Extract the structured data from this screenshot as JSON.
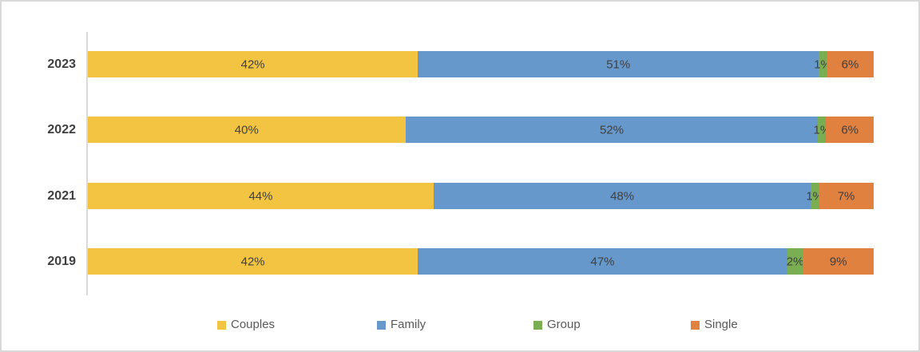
{
  "canvas": {
    "background": "#FFFFFF",
    "border_color": "#D9D9D9"
  },
  "chart_data": {
    "type": "bar",
    "variant": "stacked-horizontal-percent",
    "title": "",
    "xlabel": "",
    "ylabel": "",
    "grid": false,
    "axis_color": "#D9D9D9",
    "category_label_color": "#404040",
    "data_label_color": "#404040",
    "value_suffix": "%",
    "categories": [
      "2023",
      "2022",
      "2021",
      "2019"
    ],
    "series": [
      {
        "name": "Couples",
        "color": "#F2C442",
        "values": [
          42,
          40,
          44,
          42
        ]
      },
      {
        "name": "Family",
        "color": "#6798CB",
        "values": [
          51,
          52,
          48,
          47
        ]
      },
      {
        "name": "Group",
        "color": "#7AAE52",
        "values": [
          1,
          1,
          1,
          2
        ]
      },
      {
        "name": "Single",
        "color": "#E08140",
        "values": [
          6,
          6,
          7,
          9
        ]
      }
    ],
    "legend": {
      "position": "bottom",
      "text_color": "#595959",
      "entries": [
        "Couples",
        "Family",
        "Group",
        "Single"
      ]
    }
  }
}
